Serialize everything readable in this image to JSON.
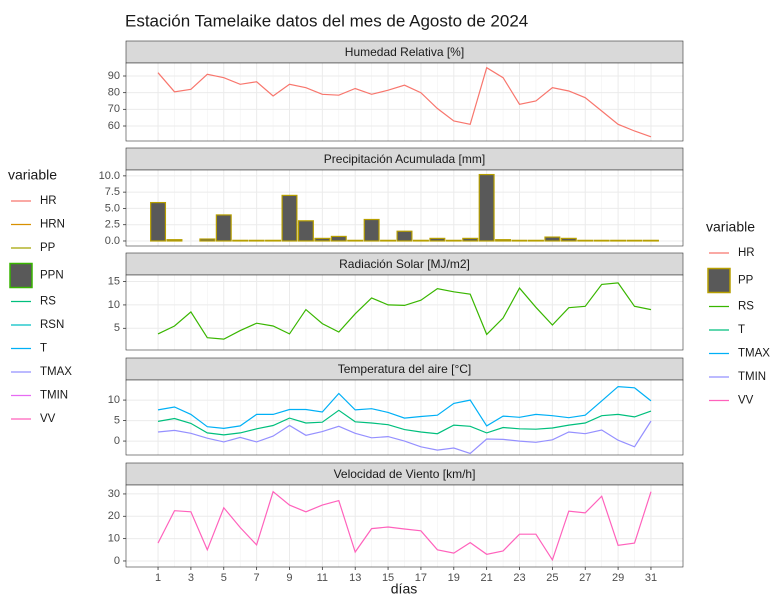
{
  "title": "Estación Tamelaike datos del mes de Agosto de 2024",
  "xlabel": "días",
  "x": [
    1,
    2,
    3,
    4,
    5,
    6,
    7,
    8,
    9,
    10,
    11,
    12,
    13,
    14,
    15,
    16,
    17,
    18,
    19,
    20,
    21,
    22,
    23,
    24,
    25,
    26,
    27,
    28,
    29,
    30,
    31
  ],
  "xlim": [
    -0.95,
    32.95
  ],
  "xticks": [
    1,
    3,
    5,
    7,
    9,
    11,
    13,
    15,
    17,
    19,
    21,
    23,
    25,
    27,
    29,
    31
  ],
  "grid": true,
  "legends": [
    {
      "title": "variable",
      "position": "left",
      "items": [
        {
          "name": "HR",
          "color": "#F8766D",
          "box": false
        },
        {
          "name": "HRN",
          "color": "#D89000",
          "box": false
        },
        {
          "name": "PP",
          "color": "#A3A500",
          "box": false
        },
        {
          "name": "PPN",
          "color": "#39B600",
          "box": true
        },
        {
          "name": "RS",
          "color": "#00BF7D",
          "box": false
        },
        {
          "name": "RSN",
          "color": "#00BFC4",
          "box": false
        },
        {
          "name": "T",
          "color": "#00B0F6",
          "box": false
        },
        {
          "name": "TMAX",
          "color": "#9590FF",
          "box": false
        },
        {
          "name": "TMIN",
          "color": "#E76BF3",
          "box": false
        },
        {
          "name": "VV",
          "color": "#FF62BC",
          "box": false
        }
      ]
    },
    {
      "title": "variable",
      "position": "right",
      "items": [
        {
          "name": "HR",
          "color": "#F8766D",
          "box": false
        },
        {
          "name": "PP",
          "color": "#B79F00",
          "box": true
        },
        {
          "name": "RS",
          "color": "#39B600",
          "box": false
        },
        {
          "name": "T",
          "color": "#00BF7D",
          "box": false
        },
        {
          "name": "TMAX",
          "color": "#00B0F6",
          "box": false
        },
        {
          "name": "TMIN",
          "color": "#9590FF",
          "box": false
        },
        {
          "name": "VV",
          "color": "#FF62BC",
          "box": false
        }
      ]
    }
  ],
  "chart_data": [
    {
      "type": "line",
      "title": "Humedad Relativa [%]",
      "ylim": [
        51,
        97.8
      ],
      "yticks": [
        60,
        70,
        80,
        90
      ],
      "series": [
        {
          "name": "HR",
          "color": "#F8766D",
          "values": [
            92,
            80.5,
            82,
            91,
            89,
            85,
            86.5,
            78,
            85,
            83,
            79,
            78.5,
            82.5,
            79,
            81.5,
            84.5,
            80,
            70.5,
            63,
            61,
            95,
            89,
            73,
            75,
            83,
            81,
            77,
            69,
            61,
            57,
            53.5
          ]
        }
      ]
    },
    {
      "type": "bar",
      "title": "Precipitación Acumulada [mm]",
      "ylim": [
        -0.77,
        10.9
      ],
      "yticks": [
        {
          "value": 0,
          "label": "0.0"
        },
        {
          "value": 2.5,
          "label": "2.5"
        },
        {
          "value": 5,
          "label": "5.0"
        },
        {
          "value": 7.5,
          "label": "7.5"
        },
        {
          "value": 10,
          "label": "10.0"
        }
      ],
      "series": [
        {
          "name": "PP",
          "color": "#B79F00",
          "fill": "#595959",
          "values": [
            5.9,
            0.2,
            0,
            0.3,
            4,
            0.1,
            0.1,
            0.1,
            7,
            3.1,
            0.4,
            0.7,
            0.1,
            3.3,
            0.1,
            1.5,
            0.1,
            0.4,
            0.1,
            0.4,
            10.2,
            0.2,
            0.1,
            0.1,
            0.6,
            0.4,
            0.1,
            0.1,
            0.1,
            0.1,
            0.1
          ]
        }
      ]
    },
    {
      "type": "line",
      "title": "Radiación Solar [MJ/m2]",
      "ylim": [
        0.36,
        16.4
      ],
      "yticks": [
        5,
        10,
        15
      ],
      "series": [
        {
          "name": "RS",
          "color": "#39B600",
          "values": [
            3.8,
            5.5,
            8.5,
            3,
            2.7,
            4.5,
            6.1,
            5.5,
            3.8,
            9,
            6,
            4.2,
            8.1,
            11.5,
            10,
            9.9,
            11,
            13.5,
            12.8,
            12.3,
            3.7,
            7.2,
            13.6,
            9.5,
            5.7,
            9.4,
            9.7,
            14.4,
            14.7,
            9.7,
            9
          ]
        }
      ]
    },
    {
      "type": "line",
      "title": "Temperatura del aire [°C]",
      "ylim": [
        -3.4,
        14.9
      ],
      "yticks": [
        0,
        5,
        10
      ],
      "series": [
        {
          "name": "T",
          "color": "#00BF7D",
          "values": [
            4.8,
            5.5,
            4.3,
            2,
            1.5,
            2,
            3,
            3.8,
            5.6,
            4.4,
            4.6,
            7.5,
            4.7,
            4.4,
            4,
            2.8,
            2.2,
            1.8,
            3.9,
            3.6,
            2,
            3.3,
            3,
            2.9,
            3.2,
            3.9,
            4.4,
            6.2,
            6.5,
            5.9,
            7.3
          ]
        },
        {
          "name": "TMAX",
          "color": "#00B0F6",
          "values": [
            7.6,
            8.3,
            6.5,
            3.5,
            3.1,
            3.7,
            6.5,
            6.5,
            7.7,
            7.7,
            7.1,
            11.6,
            7.6,
            7.9,
            7,
            5.6,
            6,
            6.3,
            9.2,
            10,
            3.7,
            6.1,
            5.8,
            6.5,
            6.2,
            5.7,
            6.3,
            9.8,
            13.3,
            13,
            9.8
          ]
        },
        {
          "name": "TMIN",
          "color": "#9590FF",
          "values": [
            2.2,
            2.6,
            1.9,
            0.7,
            -0.2,
            0.9,
            -0.2,
            1.2,
            3.8,
            1.4,
            2.3,
            3.6,
            1.9,
            0.8,
            1.1,
            0,
            -1.4,
            -2.2,
            -1.7,
            -3,
            0.5,
            0.4,
            0,
            -0.3,
            0.3,
            2.2,
            1.8,
            2.7,
            0.2,
            -1.4,
            4.9
          ]
        }
      ]
    },
    {
      "type": "line",
      "title": "Velocidad de Viento [km/h]",
      "ylim": [
        -2.7,
        34
      ],
      "yticks": [
        0,
        10,
        20,
        30
      ],
      "series": [
        {
          "name": "VV",
          "color": "#FF62BC",
          "values": [
            8,
            22.5,
            22,
            5,
            23.8,
            15,
            7.2,
            31,
            25,
            22,
            25,
            27,
            4,
            14.5,
            15.2,
            14.3,
            13.5,
            5,
            3.5,
            8.2,
            3,
            4.5,
            12,
            12,
            0.5,
            22.3,
            21.5,
            29,
            7,
            8,
            31
          ]
        }
      ]
    }
  ]
}
